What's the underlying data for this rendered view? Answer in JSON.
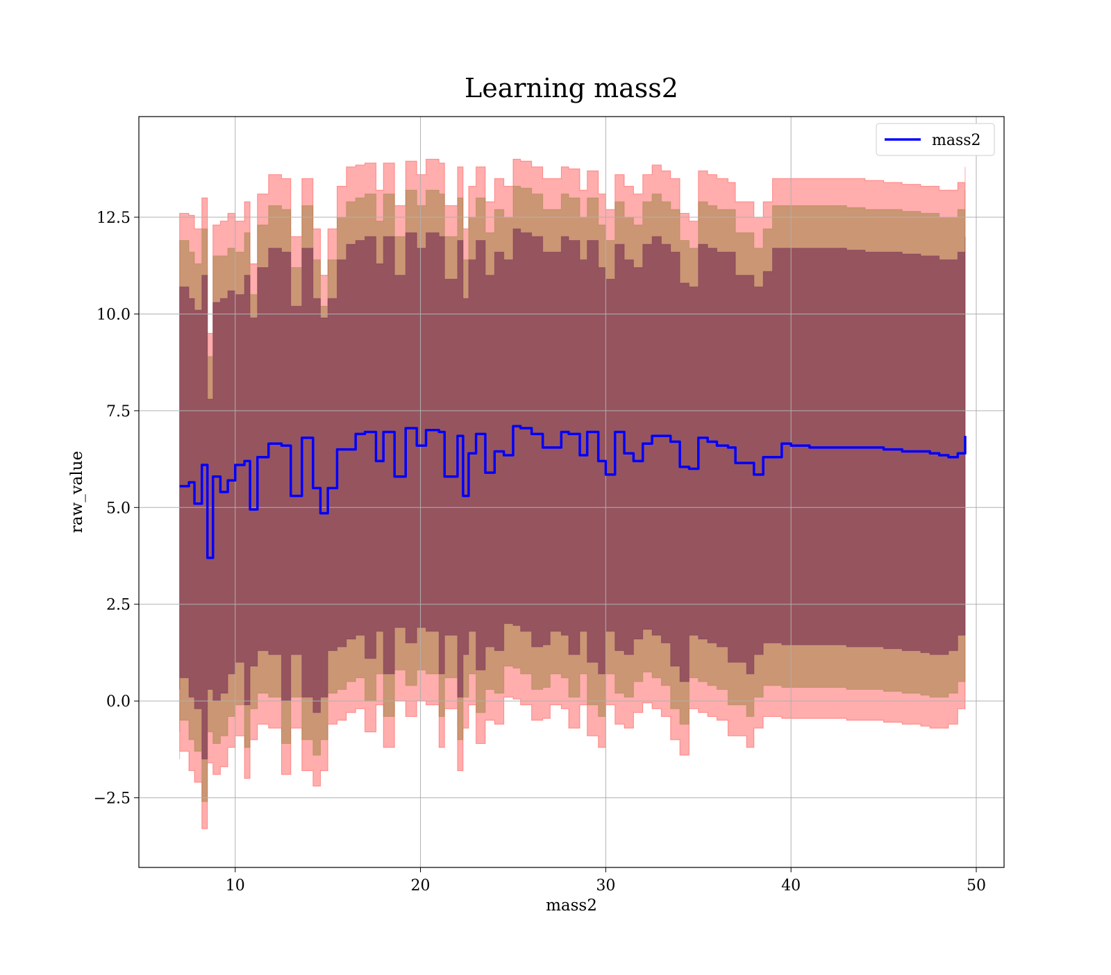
{
  "chart_data": {
    "type": "area",
    "title": "Learning mass2",
    "xlabel": "mass2",
    "ylabel": "raw_value",
    "xlim": [
      4.8,
      51.5
    ],
    "ylim": [
      -4.3,
      15.1
    ],
    "xticks": [
      10,
      20,
      30,
      40,
      50
    ],
    "yticks": [
      -2.5,
      0.0,
      2.5,
      5.0,
      7.5,
      10.0,
      12.5
    ],
    "xtick_labels": [
      "10",
      "20",
      "30",
      "40",
      "50"
    ],
    "ytick_labels": [
      "−2.5",
      "0.0",
      "2.5",
      "5.0",
      "7.5",
      "10.0",
      "12.5"
    ],
    "grid": true,
    "legend": {
      "position": "top-right",
      "entries": [
        "mass2"
      ]
    },
    "colors": {
      "line": "#0000ff",
      "band_outer": "#ff0000",
      "band_middle": "#8b7a2f",
      "band_inner": "#6b1f4f"
    },
    "x": [
      7.0,
      7.5,
      7.8,
      8.2,
      8.5,
      8.8,
      9.2,
      9.6,
      10.0,
      10.5,
      10.8,
      11.2,
      11.8,
      12.5,
      13.0,
      13.6,
      14.2,
      14.6,
      15.0,
      15.5,
      16.0,
      16.5,
      17.0,
      17.6,
      18.0,
      18.6,
      19.2,
      19.8,
      20.3,
      21.0,
      21.3,
      22.0,
      22.3,
      22.6,
      23.0,
      23.5,
      24.0,
      24.5,
      25.0,
      25.4,
      26.0,
      26.6,
      27.0,
      27.6,
      28.0,
      28.6,
      29.0,
      29.6,
      30.0,
      30.5,
      31.0,
      31.5,
      32.0,
      32.5,
      33.0,
      33.5,
      34.0,
      34.5,
      35.0,
      35.5,
      36.0,
      36.6,
      37.0,
      37.6,
      38.0,
      38.5,
      39.0,
      39.5,
      40.0,
      41.0,
      42.0,
      43.0,
      44.0,
      45.0,
      46.0,
      47.0,
      47.5,
      48.0,
      48.5,
      49.0,
      49.4
    ],
    "series": [
      {
        "name": "mass2",
        "values": [
          5.55,
          5.65,
          5.1,
          6.1,
          3.7,
          5.8,
          5.4,
          5.7,
          6.1,
          6.2,
          4.95,
          6.3,
          6.65,
          6.6,
          5.3,
          6.8,
          5.5,
          4.85,
          5.5,
          6.5,
          6.5,
          6.9,
          6.95,
          6.2,
          6.95,
          5.8,
          7.05,
          6.6,
          7.0,
          6.95,
          5.8,
          6.85,
          5.3,
          6.4,
          6.9,
          5.9,
          6.45,
          6.35,
          7.1,
          7.05,
          6.9,
          6.55,
          6.55,
          6.95,
          6.9,
          6.35,
          6.95,
          6.2,
          5.85,
          6.95,
          6.4,
          6.2,
          6.65,
          6.85,
          6.85,
          6.7,
          6.05,
          6.0,
          6.8,
          6.7,
          6.6,
          6.55,
          6.15,
          6.15,
          5.85,
          6.3,
          6.3,
          6.65,
          6.6,
          6.55,
          6.55,
          6.55,
          6.55,
          6.5,
          6.45,
          6.45,
          6.4,
          6.35,
          6.3,
          6.4,
          6.85
        ]
      }
    ],
    "bands": [
      {
        "name": "outer",
        "upper": [
          12.6,
          12.55,
          12.2,
          13.0,
          9.5,
          12.3,
          12.4,
          12.6,
          12.4,
          12.9,
          11.3,
          13.1,
          13.6,
          13.5,
          12.0,
          13.5,
          12.2,
          11.0,
          12.2,
          13.3,
          13.8,
          13.85,
          13.9,
          13.2,
          13.9,
          12.8,
          13.95,
          13.6,
          14.0,
          13.9,
          12.8,
          13.8,
          12.2,
          13.3,
          13.8,
          12.9,
          13.5,
          13.3,
          14.0,
          13.95,
          13.8,
          13.5,
          13.5,
          13.8,
          13.75,
          13.2,
          13.7,
          13.1,
          12.7,
          13.6,
          13.3,
          13.1,
          13.6,
          13.85,
          13.7,
          13.5,
          12.6,
          12.4,
          13.7,
          13.6,
          13.5,
          13.4,
          12.9,
          12.9,
          12.5,
          12.9,
          13.5,
          13.5,
          13.5,
          13.5,
          13.5,
          13.5,
          13.45,
          13.4,
          13.35,
          13.3,
          13.3,
          13.2,
          13.2,
          13.4,
          13.8
        ],
        "lower": [
          -1.5,
          -1.3,
          -1.8,
          -2.1,
          -3.3,
          -1.6,
          -1.9,
          -1.7,
          -1.2,
          -0.9,
          -2.0,
          -1.0,
          -0.6,
          -0.7,
          -1.9,
          -0.7,
          -1.8,
          -2.2,
          -1.8,
          -0.6,
          -0.5,
          -0.3,
          -0.2,
          -0.8,
          -0.1,
          -1.2,
          0.0,
          -0.4,
          0.0,
          -0.1,
          -1.2,
          -0.2,
          -1.8,
          -0.7,
          -0.1,
          -1.1,
          -0.5,
          -0.6,
          0.1,
          0.05,
          -0.1,
          -0.5,
          -0.45,
          -0.1,
          -0.2,
          -0.7,
          -0.1,
          -0.9,
          -1.2,
          -0.1,
          -0.6,
          -0.7,
          -0.3,
          -0.05,
          -0.2,
          -0.4,
          -1.0,
          -1.4,
          -0.2,
          -0.3,
          -0.4,
          -0.5,
          -0.9,
          -0.9,
          -1.2,
          -0.7,
          -0.4,
          -0.4,
          -0.45,
          -0.45,
          -0.45,
          -0.45,
          -0.5,
          -0.5,
          -0.55,
          -0.6,
          -0.65,
          -0.7,
          -0.7,
          -0.6,
          -0.2
        ]
      },
      {
        "name": "middle",
        "upper": [
          11.9,
          11.6,
          11.3,
          12.2,
          8.9,
          11.5,
          11.5,
          11.7,
          11.6,
          12.1,
          10.5,
          12.3,
          12.8,
          12.7,
          11.2,
          12.8,
          11.4,
          10.2,
          11.4,
          12.5,
          12.9,
          13.0,
          13.1,
          12.4,
          13.1,
          12.0,
          13.2,
          12.8,
          13.2,
          13.1,
          12.0,
          13.0,
          11.4,
          12.5,
          13.0,
          12.1,
          12.7,
          12.5,
          13.3,
          13.25,
          13.1,
          12.7,
          12.7,
          13.1,
          13.0,
          12.5,
          13.0,
          12.3,
          11.9,
          12.9,
          12.5,
          12.3,
          12.9,
          13.1,
          12.9,
          12.7,
          11.9,
          11.7,
          12.9,
          12.8,
          12.7,
          12.7,
          12.1,
          12.1,
          11.7,
          12.2,
          12.8,
          12.8,
          12.8,
          12.8,
          12.8,
          12.75,
          12.7,
          12.7,
          12.65,
          12.6,
          12.6,
          12.5,
          12.5,
          12.7,
          13.2
        ],
        "lower": [
          -0.8,
          -0.5,
          -1.0,
          -1.3,
          -2.6,
          -0.8,
          -1.1,
          -0.9,
          -0.4,
          -0.1,
          -1.2,
          -0.2,
          0.2,
          0.1,
          -1.1,
          0.1,
          -1.0,
          -1.4,
          -1.0,
          0.2,
          0.3,
          0.5,
          0.6,
          0.0,
          0.7,
          -0.4,
          0.8,
          0.4,
          0.8,
          0.7,
          -0.4,
          0.6,
          -1.0,
          0.1,
          0.7,
          -0.3,
          0.3,
          0.2,
          0.9,
          0.85,
          0.7,
          0.3,
          0.35,
          0.7,
          0.6,
          0.1,
          0.7,
          -0.1,
          -0.4,
          0.7,
          0.2,
          0.1,
          0.5,
          0.75,
          0.6,
          0.4,
          -0.2,
          -0.6,
          0.6,
          0.5,
          0.4,
          0.3,
          -0.1,
          -0.1,
          -0.4,
          0.1,
          0.4,
          0.4,
          0.35,
          0.35,
          0.35,
          0.35,
          0.3,
          0.3,
          0.25,
          0.2,
          0.15,
          0.1,
          0.1,
          0.2,
          0.5
        ]
      },
      {
        "name": "inner",
        "upper": [
          10.7,
          10.4,
          10.1,
          11.0,
          7.8,
          10.3,
          10.4,
          10.6,
          10.5,
          11.0,
          9.9,
          11.2,
          11.7,
          11.6,
          10.2,
          11.7,
          10.4,
          9.9,
          10.4,
          11.4,
          11.8,
          11.9,
          12.0,
          11.3,
          12.0,
          11.0,
          12.1,
          11.7,
          12.1,
          12.0,
          10.9,
          11.9,
          10.4,
          11.4,
          11.9,
          11.0,
          11.6,
          11.4,
          12.2,
          12.1,
          12.0,
          11.6,
          11.6,
          12.0,
          11.9,
          11.4,
          11.9,
          11.2,
          10.9,
          11.8,
          11.4,
          11.2,
          11.8,
          12.0,
          11.8,
          11.6,
          10.8,
          10.7,
          11.8,
          11.7,
          11.6,
          11.6,
          11.0,
          11.0,
          10.7,
          11.1,
          11.7,
          11.7,
          11.7,
          11.7,
          11.7,
          11.65,
          11.6,
          11.6,
          11.55,
          11.5,
          11.5,
          11.4,
          11.4,
          11.6,
          12.0
        ],
        "lower": [
          0.3,
          0.6,
          0.1,
          -0.2,
          -1.5,
          0.3,
          0.0,
          0.2,
          0.7,
          1.0,
          -0.1,
          0.9,
          1.3,
          1.2,
          0.0,
          1.2,
          0.1,
          -0.3,
          0.1,
          1.3,
          1.4,
          1.6,
          1.7,
          1.1,
          1.8,
          0.7,
          1.9,
          1.5,
          1.9,
          1.8,
          0.7,
          1.7,
          0.1,
          1.2,
          1.8,
          0.8,
          1.4,
          1.3,
          2.0,
          1.95,
          1.8,
          1.4,
          1.45,
          1.8,
          1.7,
          1.2,
          1.8,
          1.0,
          0.7,
          1.8,
          1.3,
          1.2,
          1.6,
          1.85,
          1.7,
          1.5,
          0.9,
          0.5,
          1.7,
          1.6,
          1.5,
          1.4,
          1.0,
          1.0,
          0.7,
          1.2,
          1.5,
          1.5,
          1.45,
          1.45,
          1.45,
          1.45,
          1.4,
          1.4,
          1.35,
          1.3,
          1.25,
          1.2,
          1.2,
          1.3,
          1.7
        ]
      }
    ]
  }
}
